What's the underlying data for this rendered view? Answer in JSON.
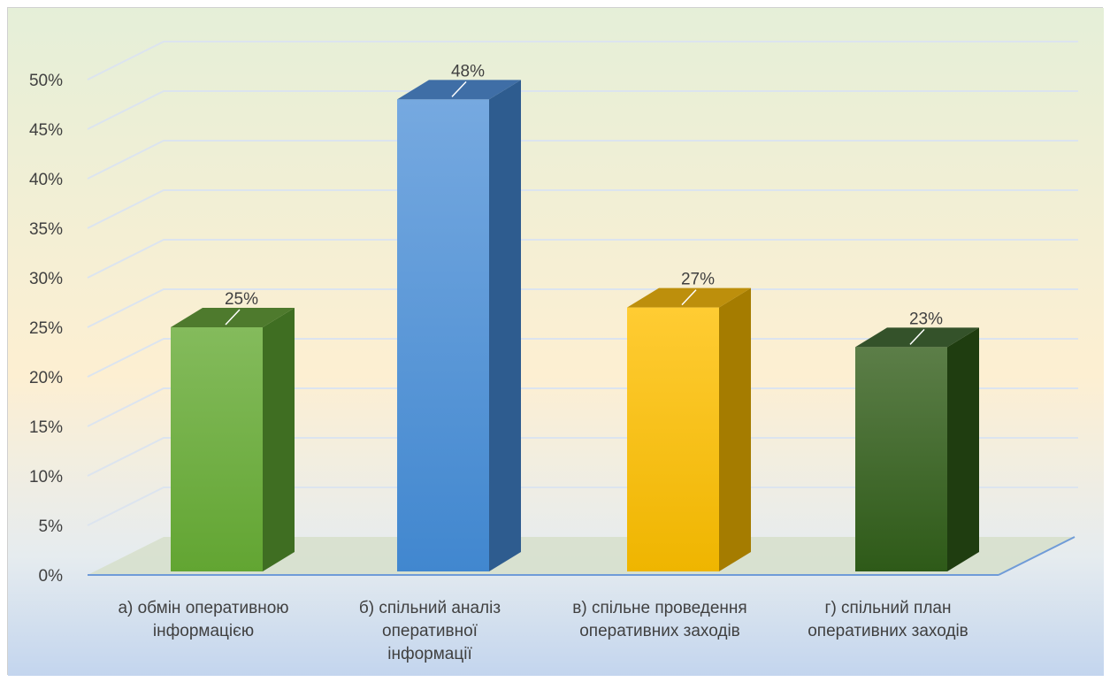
{
  "chart_data": {
    "type": "bar",
    "style": "3d-column",
    "categories": [
      [
        "а) обмін оперативною",
        "інформацією"
      ],
      [
        "б) спільний аналіз",
        "оперативної",
        "інформації"
      ],
      [
        "в) спільне проведення",
        "оперативних заходів"
      ],
      [
        "г) спільний план",
        "оперативних заходів"
      ]
    ],
    "values": [
      25,
      48,
      27,
      23
    ],
    "data_labels": [
      "25%",
      "48%",
      "27%",
      "23%"
    ],
    "y_ticks": [
      "0%",
      "5%",
      "10%",
      "15%",
      "20%",
      "25%",
      "30%",
      "35%",
      "40%",
      "45%",
      "50%"
    ],
    "ylim": [
      0,
      50
    ],
    "grid": true,
    "legend": "none",
    "colors": {
      "bars": [
        {
          "front_top": "#84bb5c",
          "front_bottom": "#62a532",
          "side": "#3f6e22",
          "top": "#4e7a2d"
        },
        {
          "front_top": "#76a9e0",
          "front_bottom": "#4187cf",
          "side": "#2e5c8f",
          "top": "#3f6ea6"
        },
        {
          "front_top": "#ffcc33",
          "front_bottom": "#efb500",
          "side": "#a57c00",
          "top": "#bd8f0c"
        },
        {
          "front_top": "#5c7e48",
          "front_bottom": "#2e5a18",
          "side": "#1f3d10",
          "top": "#34522a"
        }
      ],
      "background_top": "#e5efd8",
      "background_middle": "#fdefd2",
      "background_bottom": "#c3d5ee",
      "floor": "#d6dfca",
      "axis": "#6f9bd8",
      "text": "#404040"
    }
  }
}
